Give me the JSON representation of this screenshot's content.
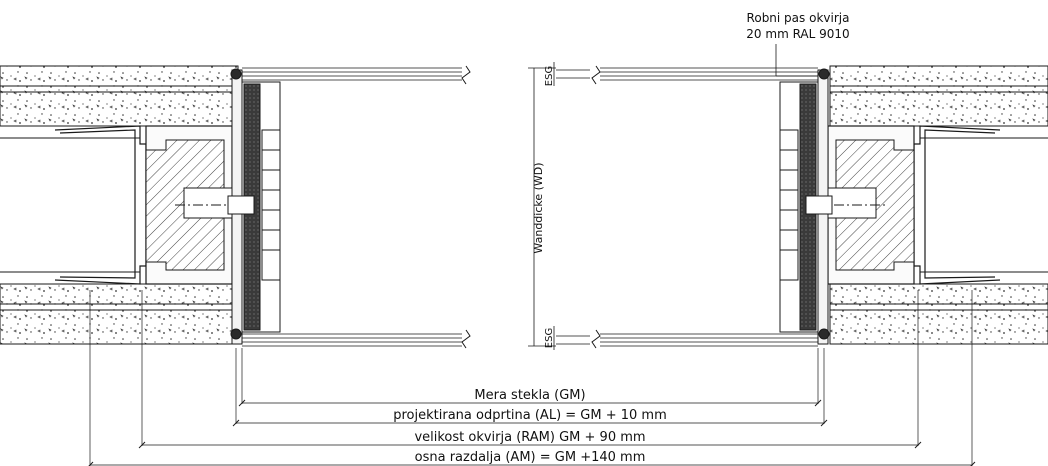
{
  "callout": {
    "line1": "Robni pas okvirja",
    "line2": "20 mm RAL 9010"
  },
  "side_labels": {
    "wall_thickness": "Wanddicke (WD)",
    "esg_top": "ESG",
    "esg_bottom": "ESG"
  },
  "dimensions": [
    {
      "label": "Mera stekla (GM)"
    },
    {
      "label": "projektirana odprtina (AL) = GM + 10 mm"
    },
    {
      "label": "velikost okvirja (RAM) GM + 90 mm"
    },
    {
      "label": "osna razdalja (AM) = GM +140 mm"
    }
  ],
  "colors": {
    "line": "#1a1a1a",
    "concrete_fill": "#ffffff",
    "seal_fill": "#2a2a2a",
    "panel_fill": "#f4f4f4"
  }
}
